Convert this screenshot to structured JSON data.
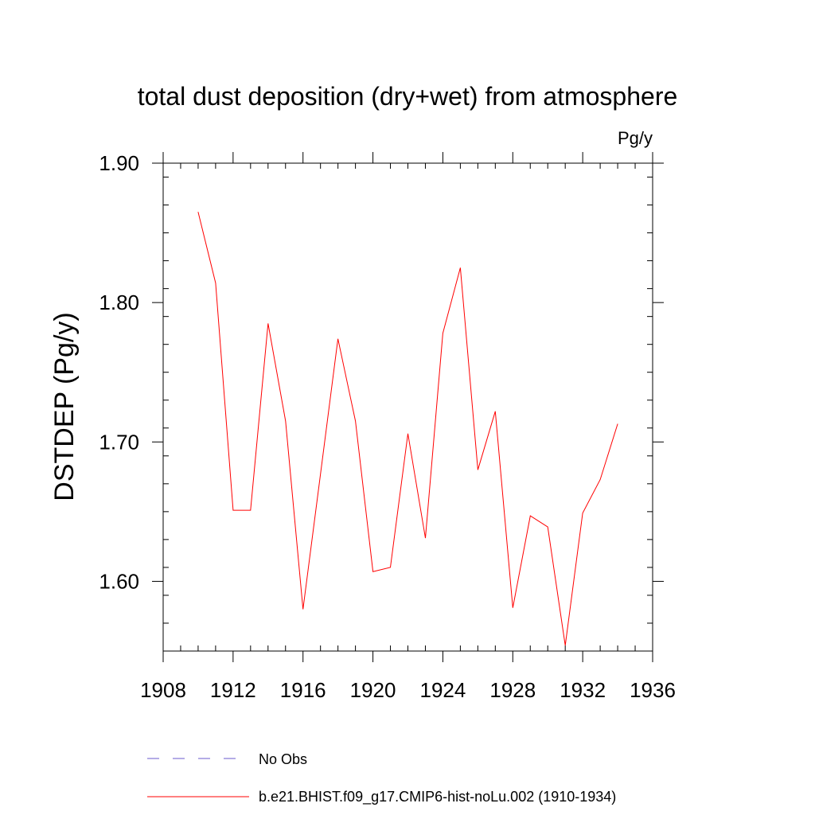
{
  "chart_data": {
    "type": "line",
    "title": "total dust deposition (dry+wet) from atmosphere",
    "units_label": "Pg/y",
    "ylabel": "DSTDEP  (Pg/y)",
    "xlabel": "",
    "xlim": [
      1908,
      1936
    ],
    "ylim": [
      1.55,
      1.9
    ],
    "x_ticks": [
      1908,
      1912,
      1916,
      1920,
      1924,
      1928,
      1932,
      1936
    ],
    "x_minor_step": 1,
    "y_ticks": [
      1.6,
      1.7,
      1.8,
      1.9
    ],
    "y_tick_labels": [
      "1.60",
      "1.70",
      "1.80",
      "1.90"
    ],
    "y_minor_step": 0.02,
    "grid": false,
    "legend_position": "bottom",
    "series": [
      {
        "name": "b.e21.BHIST.f09_g17.CMIP6-hist-noLu.002 (1910-1934)",
        "color": "#ff0000",
        "dash": "solid",
        "x": [
          1910,
          1911,
          1912,
          1913,
          1914,
          1915,
          1916,
          1917,
          1918,
          1919,
          1920,
          1921,
          1922,
          1923,
          1924,
          1925,
          1926,
          1927,
          1928,
          1929,
          1930,
          1931,
          1932,
          1933,
          1934
        ],
        "y": [
          1.865,
          1.814,
          1.651,
          1.651,
          1.785,
          1.715,
          1.58,
          1.677,
          1.774,
          1.715,
          1.607,
          1.61,
          1.706,
          1.631,
          1.778,
          1.825,
          1.68,
          1.722,
          1.581,
          1.647,
          1.639,
          1.554,
          1.649,
          1.673,
          1.713
        ]
      }
    ],
    "legend": [
      {
        "label": "No Obs",
        "color": "#6a5acd",
        "dash": "dashed"
      },
      {
        "label": "b.e21.BHIST.f09_g17.CMIP6-hist-noLu.002 (1910-1934)",
        "color": "#ff0000",
        "dash": "solid"
      }
    ]
  }
}
